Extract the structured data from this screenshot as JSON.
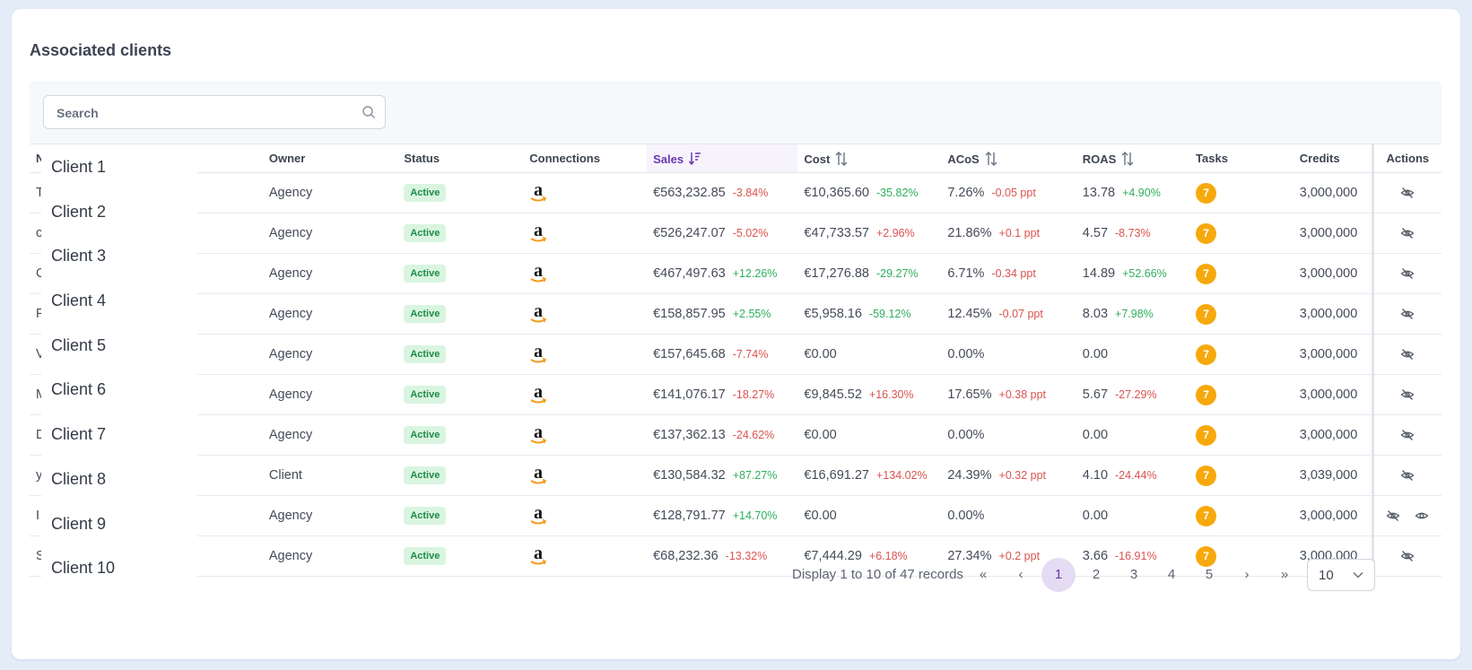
{
  "title": "Associated clients",
  "search": {
    "placeholder": "Search"
  },
  "columns": {
    "name": "N",
    "owner": "Owner",
    "status": "Status",
    "connections": "Connections",
    "sales": "Sales",
    "cost": "Cost",
    "acos": "ACoS",
    "roas": "ROAS",
    "tasks": "Tasks",
    "credits": "Credits",
    "actions": "Actions"
  },
  "dropdown_options": [
    "Client 1",
    "Client 2",
    "Client 3",
    "Client 4",
    "Client 5",
    "Client 6",
    "Client 7",
    "Client 8",
    "Client 9",
    "Client 10"
  ],
  "rows": [
    {
      "name_fragment": "T",
      "owner": "Agency",
      "status": "Active",
      "connection_icon": "amazon-logo",
      "sales": "€563,232.85",
      "sales_delta": "-3.84%",
      "sales_dir": "neg",
      "cost": "€10,365.60",
      "cost_delta": "-35.82%",
      "cost_dir": "pos",
      "acos": "7.26%",
      "acos_delta": "-0.05 ppt",
      "acos_dir": "neg",
      "roas": "13.78",
      "roas_delta": "+4.90%",
      "roas_dir": "pos",
      "tasks": "7",
      "credits": "3,000,000",
      "actions": [
        "hide-icon"
      ]
    },
    {
      "name_fragment": "c",
      "owner": "Agency",
      "status": "Active",
      "connection_icon": "amazon-logo",
      "sales": "€526,247.07",
      "sales_delta": "-5.02%",
      "sales_dir": "neg",
      "cost": "€47,733.57",
      "cost_delta": "+2.96%",
      "cost_dir": "neg",
      "acos": "21.86%",
      "acos_delta": "+0.1 ppt",
      "acos_dir": "neg",
      "roas": "4.57",
      "roas_delta": "-8.73%",
      "roas_dir": "neg",
      "tasks": "7",
      "credits": "3,000,000",
      "actions": [
        "hide-icon"
      ]
    },
    {
      "name_fragment": "C",
      "owner": "Agency",
      "status": "Active",
      "connection_icon": "amazon-logo",
      "sales": "€467,497.63",
      "sales_delta": "+12.26%",
      "sales_dir": "pos",
      "cost": "€17,276.88",
      "cost_delta": "-29.27%",
      "cost_dir": "pos",
      "acos": "6.71%",
      "acos_delta": "-0.34 ppt",
      "acos_dir": "neg",
      "roas": "14.89",
      "roas_delta": "+52.66%",
      "roas_dir": "pos",
      "tasks": "7",
      "credits": "3,000,000",
      "actions": [
        "hide-icon"
      ]
    },
    {
      "name_fragment": "F",
      "owner": "Agency",
      "status": "Active",
      "connection_icon": "amazon-logo",
      "sales": "€158,857.95",
      "sales_delta": "+2.55%",
      "sales_dir": "pos",
      "cost": "€5,958.16",
      "cost_delta": "-59.12%",
      "cost_dir": "pos",
      "acos": "12.45%",
      "acos_delta": "-0.07 ppt",
      "acos_dir": "neg",
      "roas": "8.03",
      "roas_delta": "+7.98%",
      "roas_dir": "pos",
      "tasks": "7",
      "credits": "3,000,000",
      "actions": [
        "hide-icon"
      ]
    },
    {
      "name_fragment": "V",
      "owner": "Agency",
      "status": "Active",
      "connection_icon": "amazon-logo",
      "sales": "€157,645.68",
      "sales_delta": "-7.74%",
      "sales_dir": "neg",
      "cost": "€0.00",
      "cost_delta": "",
      "cost_dir": "",
      "acos": "0.00%",
      "acos_delta": "",
      "acos_dir": "",
      "roas": "0.00",
      "roas_delta": "",
      "roas_dir": "",
      "tasks": "7",
      "credits": "3,000,000",
      "actions": [
        "hide-icon"
      ]
    },
    {
      "name_fragment": "M",
      "owner": "Agency",
      "status": "Active",
      "connection_icon": "amazon-logo",
      "sales": "€141,076.17",
      "sales_delta": "-18.27%",
      "sales_dir": "neg",
      "cost": "€9,845.52",
      "cost_delta": "+16.30%",
      "cost_dir": "neg",
      "acos": "17.65%",
      "acos_delta": "+0.38 ppt",
      "acos_dir": "neg",
      "roas": "5.67",
      "roas_delta": "-27.29%",
      "roas_dir": "neg",
      "tasks": "7",
      "credits": "3,000,000",
      "actions": [
        "hide-icon"
      ]
    },
    {
      "name_fragment": "D",
      "owner": "Agency",
      "status": "Active",
      "connection_icon": "amazon-logo",
      "sales": "€137,362.13",
      "sales_delta": "-24.62%",
      "sales_dir": "neg",
      "cost": "€0.00",
      "cost_delta": "",
      "cost_dir": "",
      "acos": "0.00%",
      "acos_delta": "",
      "acos_dir": "",
      "roas": "0.00",
      "roas_delta": "",
      "roas_dir": "",
      "tasks": "7",
      "credits": "3,000,000",
      "actions": [
        "hide-icon"
      ]
    },
    {
      "name_fragment": "y",
      "owner": "Client",
      "status": "Active",
      "connection_icon": "amazon-logo",
      "sales": "€130,584.32",
      "sales_delta": "+87.27%",
      "sales_dir": "pos",
      "cost": "€16,691.27",
      "cost_delta": "+134.02%",
      "cost_dir": "neg",
      "acos": "24.39%",
      "acos_delta": "+0.32 ppt",
      "acos_dir": "neg",
      "roas": "4.10",
      "roas_delta": "-24.44%",
      "roas_dir": "neg",
      "tasks": "7",
      "credits": "3,039,000",
      "actions": [
        "hide-icon"
      ]
    },
    {
      "name_fragment": "I",
      "owner": "Agency",
      "status": "Active",
      "connection_icon": "amazon-logo",
      "sales": "€128,791.77",
      "sales_delta": "+14.70%",
      "sales_dir": "pos",
      "cost": "€0.00",
      "cost_delta": "",
      "cost_dir": "",
      "acos": "0.00%",
      "acos_delta": "",
      "acos_dir": "",
      "roas": "0.00",
      "roas_delta": "",
      "roas_dir": "",
      "tasks": "7",
      "credits": "3,000,000",
      "actions": [
        "hide-icon",
        "view-icon"
      ]
    },
    {
      "name_fragment": "S",
      "owner": "Agency",
      "status": "Active",
      "connection_icon": "amazon-logo",
      "sales": "€68,232.36",
      "sales_delta": "-13.32%",
      "sales_dir": "neg",
      "cost": "€7,444.29",
      "cost_delta": "+6.18%",
      "cost_dir": "neg",
      "acos": "27.34%",
      "acos_delta": "+0.2 ppt",
      "acos_dir": "neg",
      "roas": "3.66",
      "roas_delta": "-16.91%",
      "roas_dir": "neg",
      "tasks": "7",
      "credits": "3,000,000",
      "actions": [
        "hide-icon"
      ]
    }
  ],
  "pagination": {
    "info": "Display 1 to 10 of 47 records",
    "pages": [
      "1",
      "2",
      "3",
      "4",
      "5"
    ],
    "current": "1",
    "per_page": "10",
    "first_glyph": "«",
    "prev_glyph": "‹",
    "next_glyph": "›",
    "last_glyph": "»"
  },
  "colors": {
    "accent": "#6a38b0",
    "active_badge_bg": "#d9f5e0",
    "active_badge_text": "#1f8a48",
    "negative": "#d9534f",
    "positive": "#2fae5c",
    "tasks_badge": "#f7a90b"
  }
}
